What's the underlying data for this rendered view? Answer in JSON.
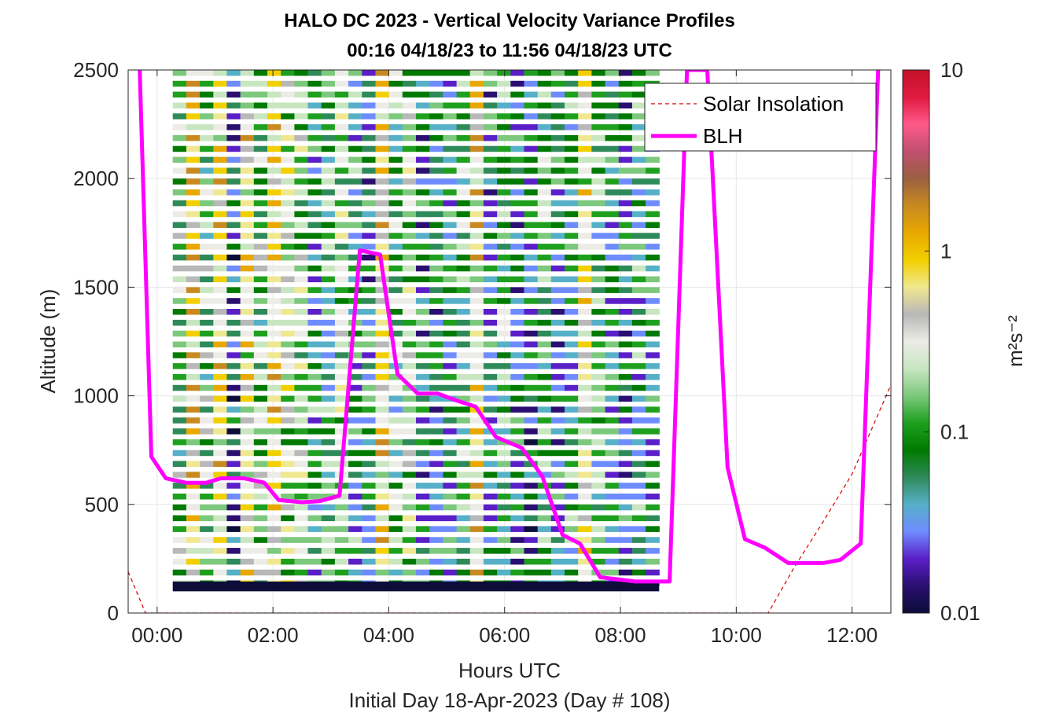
{
  "chart_data": {
    "type": "heatmap",
    "title": "HALO DC 2023 - Vertical Velocity Variance Profiles",
    "subtitle": "00:16 04/18/23 to 11:56 04/18/23  UTC",
    "xlabel": "Hours UTC",
    "xlabel2": "Initial Day 18-Apr-2023 (Day # 108)",
    "ylabel": "Altitude (m)",
    "xlim": [
      -0.5,
      12.67
    ],
    "ylim": [
      0,
      2500
    ],
    "x_ticks": [
      0,
      2,
      4,
      6,
      8,
      10,
      12
    ],
    "x_tick_labels": [
      "00:00",
      "02:00",
      "04:00",
      "06:00",
      "08:00",
      "10:00",
      "12:00"
    ],
    "y_ticks": [
      0,
      500,
      1000,
      1500,
      2000,
      2500
    ],
    "y_tick_labels": [
      "0",
      "500",
      "1000",
      "1500",
      "2000",
      "2500"
    ],
    "grid": true,
    "colorbar": {
      "label": "m²s⁻²",
      "scale": "log",
      "range": [
        0.01,
        10
      ],
      "ticks": [
        0.01,
        0.1,
        1,
        10
      ],
      "tick_labels": [
        "0.01",
        "0.1",
        "1",
        "10"
      ],
      "stops": [
        "#0d0d3a",
        "#2a0f70",
        "#5a1fc8",
        "#6f8cff",
        "#56b0c8",
        "#2f8a5a",
        "#007a00",
        "#1ea01e",
        "#7cc87c",
        "#c8e6c0",
        "#ecebe6",
        "#b8b8b8",
        "#f0e890",
        "#f2d000",
        "#e8a800",
        "#c88a20",
        "#9a6040",
        "#c05070",
        "#ff5a8a",
        "#e01a40",
        "#c4122a"
      ]
    },
    "heatmap": {
      "x_start": 0.27,
      "x_step": 0.2333,
      "y_start": 125,
      "y_step": 50,
      "rows": 48,
      "cols": 36,
      "surface_band": {
        "y0": 100,
        "y1": 145,
        "color": "#0d0d3a"
      }
    },
    "series": [
      {
        "name": "Solar Insolation",
        "style": "dashed",
        "color": "#d40000",
        "x": [
          -0.5,
          -0.2,
          0.0,
          10.55,
          11.0,
          11.5,
          12.0,
          12.67
        ],
        "y": [
          190,
          0,
          0,
          0,
          210,
          420,
          640,
          1050
        ]
      },
      {
        "name": "BLH",
        "style": "solid",
        "color": "#ff00ff",
        "x": [
          -0.3,
          -0.1,
          0.15,
          0.5,
          0.85,
          1.1,
          1.5,
          1.85,
          2.1,
          2.5,
          2.8,
          3.15,
          3.5,
          3.85,
          4.15,
          4.5,
          4.85,
          5.15,
          5.5,
          5.85,
          6.3,
          6.65,
          7.0,
          7.3,
          7.65,
          8.25,
          8.85,
          9.15,
          9.5,
          9.85,
          10.15,
          10.5,
          10.9,
          11.5,
          11.8,
          12.15,
          12.45
        ],
        "y": [
          2500,
          720,
          620,
          600,
          600,
          620,
          620,
          600,
          520,
          510,
          515,
          540,
          1670,
          1650,
          1100,
          1010,
          1010,
          980,
          950,
          810,
          760,
          630,
          360,
          320,
          165,
          145,
          145,
          2500,
          2500,
          670,
          340,
          300,
          230,
          230,
          245,
          320,
          2500
        ]
      }
    ],
    "legend": {
      "placement": "top-right",
      "entries": [
        "Solar Insolation",
        "BLH"
      ]
    }
  }
}
